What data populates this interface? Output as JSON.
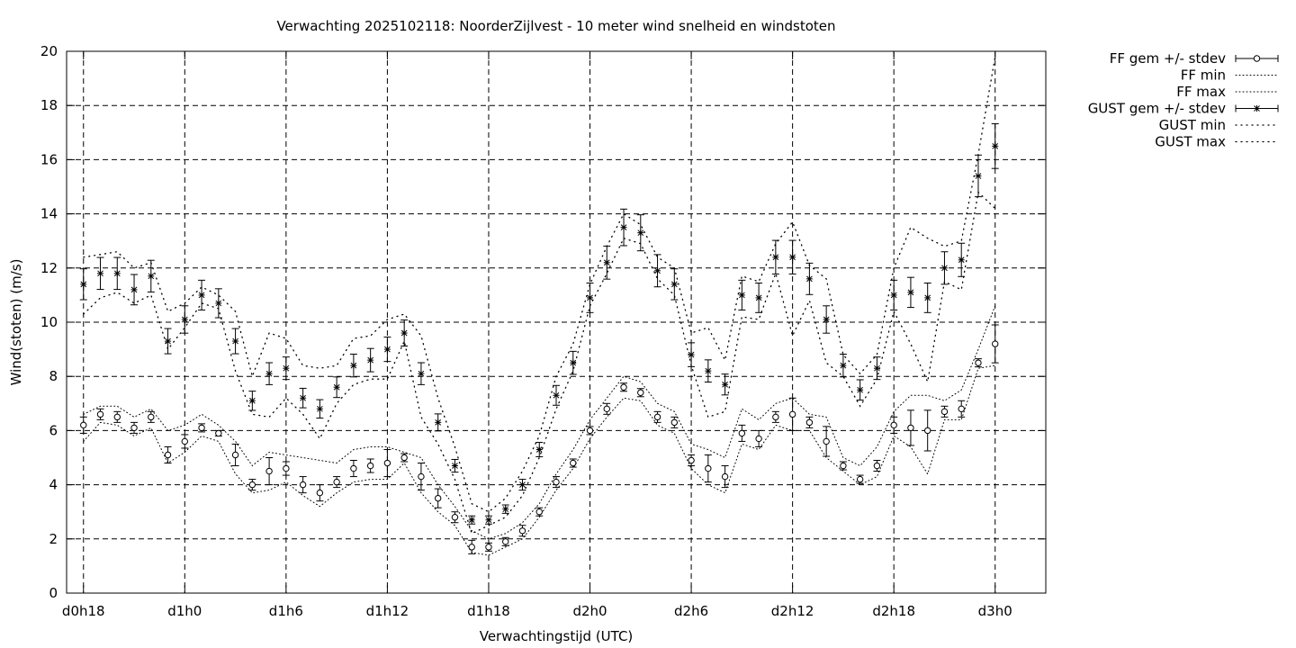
{
  "chart_data": {
    "type": "line",
    "title": "Verwachting 2025102118: NoorderZijlvest - 10 meter wind snelheid en windstoten",
    "xlabel": "Verwachtingstijd (UTC)",
    "ylabel": "Wind(stoten) (m/s)",
    "ylim": [
      0,
      20
    ],
    "yticks": [
      0,
      2,
      4,
      6,
      8,
      10,
      12,
      14,
      16,
      18,
      20
    ],
    "xlim": [
      -0.5,
      28.5
    ],
    "xticks": [
      {
        "x": 0,
        "label": "d0h18"
      },
      {
        "x": 3,
        "label": "d1h0"
      },
      {
        "x": 6,
        "label": "d1h6"
      },
      {
        "x": 9,
        "label": "d1h12"
      },
      {
        "x": 12,
        "label": "d1h18"
      },
      {
        "x": 15,
        "label": "d2h0"
      },
      {
        "x": 18,
        "label": "d2h6"
      },
      {
        "x": 21,
        "label": "d2h12"
      },
      {
        "x": 24,
        "label": "d2h18"
      },
      {
        "x": 27,
        "label": "d3h0"
      }
    ],
    "grid": true,
    "legend_position": "outside-right",
    "series": [
      {
        "name": "FF gem +/- stdev",
        "marker": "circle",
        "x": [
          0,
          0.5,
          1,
          1.5,
          2,
          2.5,
          3,
          3.5,
          4,
          4.5,
          5,
          5.5,
          6,
          6.5,
          7,
          7.5,
          8,
          8.5,
          9,
          9.5,
          10,
          10.5,
          11,
          11.5,
          12,
          12.5,
          13,
          13.5,
          14,
          14.5,
          15,
          15.5,
          16,
          16.5,
          17,
          17.5,
          18,
          18.5,
          19,
          19.5,
          20,
          20.5,
          21,
          21.5,
          22,
          22.5,
          23,
          23.5,
          24,
          24.5,
          25,
          25.5,
          26,
          26.5,
          27
        ],
        "values": [
          6.2,
          6.6,
          6.5,
          6.1,
          6.5,
          5.1,
          5.6,
          6.1,
          5.9,
          5.1,
          4.0,
          4.5,
          4.6,
          4.0,
          3.7,
          4.1,
          4.6,
          4.7,
          4.8,
          5.0,
          4.3,
          3.5,
          2.8,
          1.7,
          1.7,
          1.9,
          2.3,
          3.0,
          4.1,
          4.8,
          6.0,
          6.8,
          7.6,
          7.4,
          6.5,
          6.3,
          4.9,
          4.6,
          4.3,
          5.9,
          5.7,
          6.5,
          6.6,
          6.3,
          5.6,
          4.7,
          4.2,
          4.7,
          6.2,
          6.1,
          6.0,
          6.7,
          6.8,
          8.5,
          9.2
        ],
        "stdev": [
          0.3,
          0.2,
          0.2,
          0.2,
          0.2,
          0.3,
          0.25,
          0.15,
          0.1,
          0.4,
          0.2,
          0.5,
          0.25,
          0.3,
          0.3,
          0.2,
          0.3,
          0.25,
          0.5,
          0.15,
          0.5,
          0.35,
          0.2,
          0.25,
          0.15,
          0.15,
          0.2,
          0.15,
          0.2,
          0.15,
          0.15,
          0.2,
          0.15,
          0.15,
          0.2,
          0.2,
          0.2,
          0.5,
          0.4,
          0.3,
          0.3,
          0.2,
          0.6,
          0.2,
          0.55,
          0.15,
          0.15,
          0.2,
          0.3,
          0.65,
          0.75,
          0.2,
          0.3,
          0.15,
          0.7
        ]
      },
      {
        "name": "FF min",
        "line": "dotted",
        "x": [
          0,
          0.5,
          1,
          1.5,
          2,
          2.5,
          3,
          3.5,
          4,
          4.5,
          5,
          5.5,
          6,
          6.5,
          7,
          7.5,
          8,
          8.5,
          9,
          9.5,
          10,
          10.5,
          11,
          11.5,
          12,
          12.5,
          13,
          13.5,
          14,
          14.5,
          15,
          15.5,
          16,
          16.5,
          17,
          17.5,
          18,
          18.5,
          19,
          19.5,
          20,
          20.5,
          21,
          21.5,
          22,
          22.5,
          23,
          23.5,
          24,
          24.5,
          25,
          25.5,
          26,
          26.5,
          27
        ],
        "values": [
          5.6,
          6.3,
          6.2,
          5.8,
          6.1,
          4.8,
          5.2,
          5.8,
          5.6,
          4.4,
          3.7,
          3.8,
          4.1,
          3.6,
          3.2,
          3.7,
          4.1,
          4.2,
          4.2,
          4.8,
          3.7,
          3.0,
          2.5,
          1.5,
          1.4,
          1.7,
          2.0,
          2.8,
          3.8,
          4.6,
          5.7,
          6.5,
          7.2,
          7.1,
          6.2,
          5.9,
          4.6,
          4.0,
          3.7,
          5.5,
          5.3,
          6.2,
          6.0,
          6.0,
          5.0,
          4.5,
          4.0,
          4.3,
          5.8,
          5.4,
          4.4,
          6.4,
          6.4,
          8.3,
          8.4
        ]
      },
      {
        "name": "FF max",
        "line": "dotted",
        "x": [
          0,
          0.5,
          1,
          1.5,
          2,
          2.5,
          3,
          3.5,
          4,
          4.5,
          5,
          5.5,
          6,
          6.5,
          7,
          7.5,
          8,
          8.5,
          9,
          9.5,
          10,
          10.5,
          11,
          11.5,
          12,
          12.5,
          13,
          13.5,
          14,
          14.5,
          15,
          15.5,
          16,
          16.5,
          17,
          17.5,
          18,
          18.5,
          19,
          19.5,
          20,
          20.5,
          21,
          21.5,
          22,
          22.5,
          23,
          23.5,
          24,
          24.5,
          25,
          25.5,
          26,
          26.5,
          27
        ],
        "values": [
          6.6,
          6.9,
          6.9,
          6.5,
          6.8,
          6.0,
          6.2,
          6.6,
          6.2,
          5.6,
          4.7,
          5.2,
          5.1,
          5.0,
          4.9,
          4.8,
          5.3,
          5.4,
          5.4,
          5.2,
          5.0,
          4.0,
          3.2,
          2.3,
          2.0,
          2.2,
          2.6,
          3.3,
          4.4,
          5.3,
          6.4,
          7.2,
          8.0,
          7.8,
          7.0,
          6.7,
          5.5,
          5.3,
          5.0,
          6.8,
          6.4,
          7.0,
          7.2,
          6.6,
          6.5,
          5.0,
          4.7,
          5.4,
          6.7,
          7.3,
          7.3,
          7.1,
          7.5,
          9.0,
          10.6
        ]
      },
      {
        "name": "GUST gem +/- stdev",
        "marker": "star",
        "x": [
          0,
          0.5,
          1,
          1.5,
          2,
          2.5,
          3,
          3.5,
          4,
          4.5,
          5,
          5.5,
          6,
          6.5,
          7,
          7.5,
          8,
          8.5,
          9,
          9.5,
          10,
          10.5,
          11,
          11.5,
          12,
          12.5,
          13,
          13.5,
          14,
          14.5,
          15,
          15.5,
          16,
          16.5,
          17,
          17.5,
          18,
          18.5,
          19,
          19.5,
          20,
          20.5,
          21,
          21.5,
          22,
          22.5,
          23,
          23.5,
          24,
          24.5,
          25,
          25.5,
          26,
          26.5,
          27
        ],
        "values": [
          11.4,
          11.8,
          11.8,
          11.2,
          11.7,
          9.3,
          10.1,
          11.0,
          10.7,
          9.3,
          7.1,
          8.1,
          8.3,
          7.2,
          6.8,
          7.6,
          8.4,
          8.6,
          9.0,
          9.6,
          8.1,
          6.3,
          4.7,
          2.7,
          2.7,
          3.1,
          4.0,
          5.3,
          7.3,
          8.5,
          10.9,
          12.2,
          13.5,
          13.3,
          11.9,
          11.4,
          8.8,
          8.2,
          7.7,
          11.0,
          10.9,
          12.4,
          12.4,
          11.6,
          10.1,
          8.4,
          7.5,
          8.3,
          11.0,
          11.1,
          10.9,
          12.0,
          12.3,
          15.4,
          16.5
        ]
      },
      {
        "name": "GUST min",
        "line": "dotted",
        "x": [
          0,
          0.5,
          1,
          1.5,
          2,
          2.5,
          3,
          3.5,
          4,
          4.5,
          5,
          5.5,
          6,
          6.5,
          7,
          7.5,
          8,
          8.5,
          9,
          9.5,
          10,
          10.5,
          11,
          11.5,
          12,
          12.5,
          13,
          13.5,
          14,
          14.5,
          15,
          15.5,
          16,
          16.5,
          17,
          17.5,
          18,
          18.5,
          19,
          19.5,
          20,
          20.5,
          21,
          21.5,
          22,
          22.5,
          23,
          23.5,
          24,
          24.5,
          25,
          25.5,
          26,
          26.5,
          27
        ],
        "values": [
          10.3,
          10.9,
          11.1,
          10.7,
          11.0,
          9.0,
          9.8,
          10.7,
          10.5,
          8.2,
          6.6,
          6.5,
          7.2,
          6.6,
          5.7,
          7.0,
          7.7,
          7.9,
          7.9,
          9.3,
          6.5,
          5.5,
          4.2,
          2.2,
          2.5,
          2.8,
          3.6,
          5.0,
          6.8,
          8.2,
          10.6,
          11.8,
          13.1,
          12.9,
          11.6,
          11.0,
          8.4,
          6.5,
          6.7,
          10.2,
          10.1,
          11.8,
          9.5,
          10.8,
          8.5,
          8.0,
          6.9,
          7.9,
          10.4,
          9.2,
          7.8,
          11.5,
          11.2,
          14.8,
          14.2
        ]
      },
      {
        "name": "GUST max",
        "line": "dotted",
        "x": [
          0,
          0.5,
          1,
          1.5,
          2,
          2.5,
          3,
          3.5,
          4,
          4.5,
          5,
          5.5,
          6,
          6.5,
          7,
          7.5,
          8,
          8.5,
          9,
          9.5,
          10,
          10.5,
          11,
          11.5,
          12,
          12.5,
          13,
          13.5,
          14,
          14.5,
          15,
          15.5,
          16,
          16.5,
          17,
          17.5,
          18,
          18.5,
          19,
          19.5,
          20,
          20.5,
          21,
          21.5,
          22,
          22.5,
          23,
          23.5,
          24,
          24.5,
          25,
          25.5,
          26,
          26.5,
          27
        ],
        "values": [
          12.4,
          12.5,
          12.6,
          12.0,
          12.2,
          10.4,
          10.7,
          11.3,
          11.0,
          10.4,
          8.0,
          9.6,
          9.4,
          8.4,
          8.3,
          8.4,
          9.4,
          9.5,
          10.1,
          10.3,
          9.5,
          7.2,
          5.4,
          3.3,
          3.0,
          3.5,
          4.5,
          5.8,
          8.0,
          9.2,
          11.4,
          12.8,
          14.0,
          13.6,
          12.4,
          12.0,
          9.6,
          9.8,
          8.6,
          11.7,
          11.5,
          12.9,
          13.7,
          12.1,
          11.6,
          8.8,
          8.1,
          8.8,
          12.0,
          13.5,
          13.1,
          12.8,
          13.0,
          16.2,
          19.8
        ]
      }
    ]
  }
}
